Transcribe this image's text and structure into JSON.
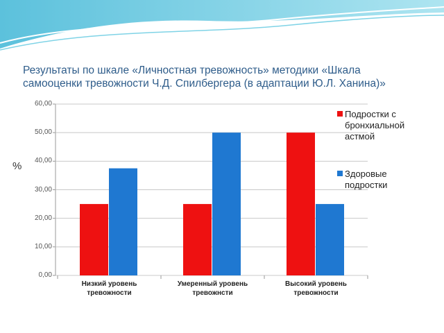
{
  "chart_data": {
    "type": "bar",
    "title": "Результаты по шкале «Личностная тревожность» методики «Шкала самооценки тревожности Ч.Д. Спилбергера (в адаптации Ю.Л. Ханина)»",
    "y_label": "%",
    "categories": [
      "Низкий уровень\nтревожности",
      "Умеренный уровень\nтревожнсти",
      "Высокий уровень\nтревожности"
    ],
    "series": [
      {
        "name": "Подростки с бронхиальной астмой",
        "color": "#ee1111",
        "values": [
          25,
          25,
          50
        ]
      },
      {
        "name": "Здоровые подростки",
        "color": "#1f78d1",
        "values": [
          37.5,
          50,
          25
        ]
      }
    ],
    "ylim": [
      0,
      60
    ],
    "yticks": [
      {
        "value": 0,
        "label": "0,00"
      },
      {
        "value": 10,
        "label": "10,00"
      },
      {
        "value": 20,
        "label": "20,00"
      },
      {
        "value": 30,
        "label": "30,00"
      },
      {
        "value": 40,
        "label": "40,00"
      },
      {
        "value": 50,
        "label": "50,00"
      },
      {
        "value": 60,
        "label": "60,00"
      }
    ],
    "grid": true,
    "legend": "right"
  }
}
